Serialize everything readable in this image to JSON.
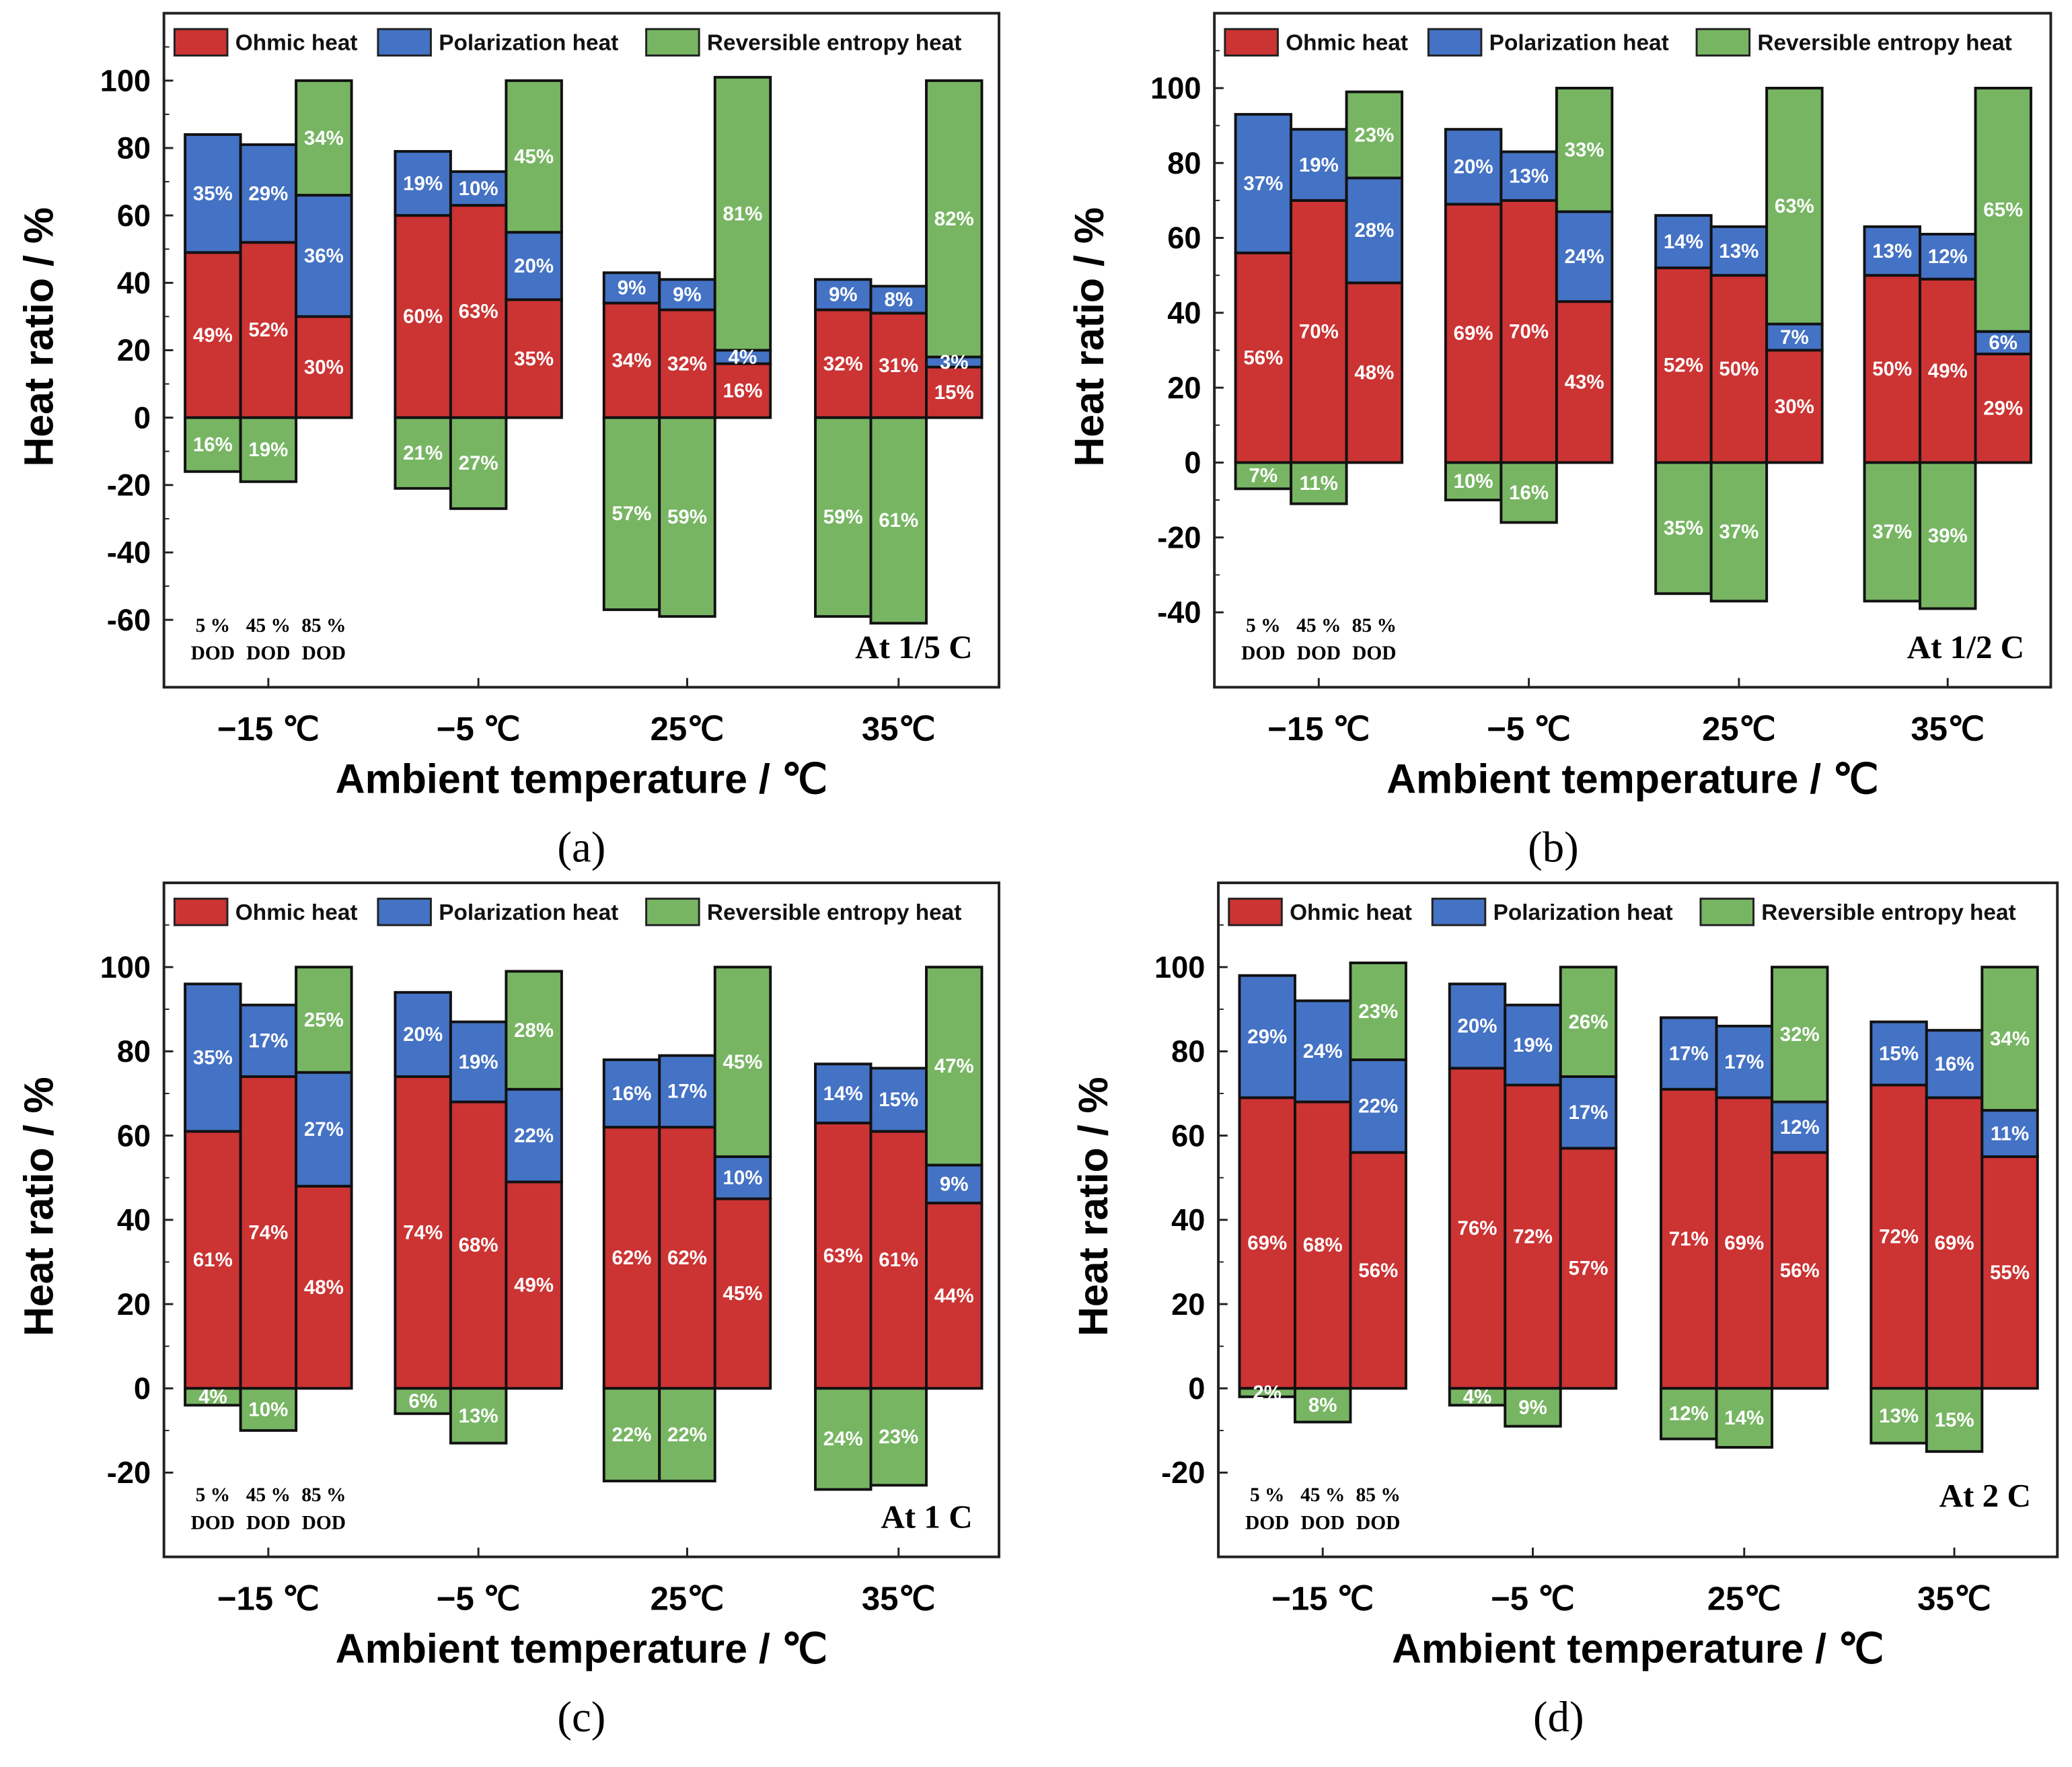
{
  "colors": {
    "ohmic": "#cc3333",
    "polarization": "#4472c4",
    "reversible": "#77b563"
  },
  "chart_data": [
    {
      "type": "bar",
      "stacked": true,
      "caption": "(a)",
      "annotation": "At 1/5 C",
      "legend": [
        "Ohmic heat",
        "Polarization heat",
        "Reversible entropy heat"
      ],
      "legend_placement": "top",
      "xlabel": "Ambient temperature / ℃",
      "ylabel": "Heat ratio / %",
      "ylim": [
        -80,
        120
      ],
      "yticks": [
        -60,
        -40,
        -20,
        0,
        20,
        40,
        60,
        80,
        100
      ],
      "categories": [
        "−15 ℃",
        "−5 ℃",
        "25℃",
        "35℃"
      ],
      "subcategories": [
        "5 %",
        "45 %",
        "85 %"
      ],
      "subcategory_unit": "DOD",
      "values": [
        [
          [
            49,
            35,
            -16
          ],
          [
            52,
            29,
            -19
          ],
          [
            30,
            36,
            34
          ]
        ],
        [
          [
            60,
            19,
            -21
          ],
          [
            63,
            10,
            -27
          ],
          [
            35,
            20,
            45
          ]
        ],
        [
          [
            34,
            9,
            -57
          ],
          [
            32,
            9,
            -59
          ],
          [
            16,
            4,
            81
          ]
        ],
        [
          [
            32,
            9,
            -59
          ],
          [
            31,
            8,
            -61
          ],
          [
            15,
            3,
            82
          ]
        ]
      ]
    },
    {
      "type": "bar",
      "stacked": true,
      "caption": "(b)",
      "annotation": "At 1/2 C",
      "legend": [
        "Ohmic heat",
        "Polarization heat",
        "Reversible entropy heat"
      ],
      "legend_placement": "top",
      "xlabel": "Ambient temperature / ℃",
      "ylabel": "Heat ratio / %",
      "ylim": [
        -60,
        120
      ],
      "yticks": [
        -40,
        -20,
        0,
        20,
        40,
        60,
        80,
        100
      ],
      "categories": [
        "−15 ℃",
        "−5 ℃",
        "25℃",
        "35℃"
      ],
      "subcategories": [
        "5 %",
        "45 %",
        "85 %"
      ],
      "subcategory_unit": "DOD",
      "values": [
        [
          [
            56,
            37,
            -7
          ],
          [
            70,
            19,
            -11
          ],
          [
            48,
            28,
            23
          ]
        ],
        [
          [
            69,
            20,
            -10
          ],
          [
            70,
            13,
            -16
          ],
          [
            43,
            24,
            33
          ]
        ],
        [
          [
            52,
            14,
            -35
          ],
          [
            50,
            13,
            -37
          ],
          [
            30,
            7,
            63
          ]
        ],
        [
          [
            50,
            13,
            -37
          ],
          [
            49,
            12,
            -39
          ],
          [
            29,
            6,
            65
          ]
        ]
      ]
    },
    {
      "type": "bar",
      "stacked": true,
      "caption": "(c)",
      "annotation": "At 1 C",
      "legend": [
        "Ohmic heat",
        "Polarization heat",
        "Reversible entropy heat"
      ],
      "legend_placement": "top",
      "xlabel": "Ambient temperature / ℃",
      "ylabel": "Heat ratio / %",
      "ylim": [
        -40,
        120
      ],
      "yticks": [
        -20,
        0,
        20,
        40,
        60,
        80,
        100
      ],
      "categories": [
        "−15 ℃",
        "−5 ℃",
        "25℃",
        "35℃"
      ],
      "subcategories": [
        "5 %",
        "45 %",
        "85 %"
      ],
      "subcategory_unit": "DOD",
      "values": [
        [
          [
            61,
            35,
            -4
          ],
          [
            74,
            17,
            -10
          ],
          [
            48,
            27,
            25
          ]
        ],
        [
          [
            74,
            20,
            -6
          ],
          [
            68,
            19,
            -13
          ],
          [
            49,
            22,
            28
          ]
        ],
        [
          [
            62,
            16,
            -22
          ],
          [
            62,
            17,
            -22
          ],
          [
            45,
            10,
            45
          ]
        ],
        [
          [
            63,
            14,
            -24
          ],
          [
            61,
            15,
            -23
          ],
          [
            44,
            9,
            47
          ]
        ]
      ]
    },
    {
      "type": "bar",
      "stacked": true,
      "caption": "(d)",
      "annotation": "At 2 C",
      "legend": [
        "Ohmic heat",
        "Polarization heat",
        "Reversible entropy heat"
      ],
      "legend_placement": "top",
      "xlabel": "Ambient temperature / ℃",
      "ylabel": "Heat ratio / %",
      "ylim": [
        -40,
        120
      ],
      "yticks": [
        -20,
        0,
        20,
        40,
        60,
        80,
        100
      ],
      "categories": [
        "−15 ℃",
        "−5 ℃",
        "25℃",
        "35℃"
      ],
      "subcategories": [
        "5 %",
        "45 %",
        "85 %"
      ],
      "subcategory_unit": "DOD",
      "values": [
        [
          [
            69,
            29,
            -2
          ],
          [
            68,
            24,
            -8
          ],
          [
            56,
            22,
            23
          ]
        ],
        [
          [
            76,
            20,
            -4
          ],
          [
            72,
            19,
            -9
          ],
          [
            57,
            17,
            26
          ]
        ],
        [
          [
            71,
            17,
            -12
          ],
          [
            69,
            17,
            -14
          ],
          [
            56,
            12,
            32
          ]
        ],
        [
          [
            72,
            15,
            -13
          ],
          [
            69,
            16,
            -15
          ],
          [
            55,
            11,
            34
          ]
        ]
      ]
    }
  ]
}
